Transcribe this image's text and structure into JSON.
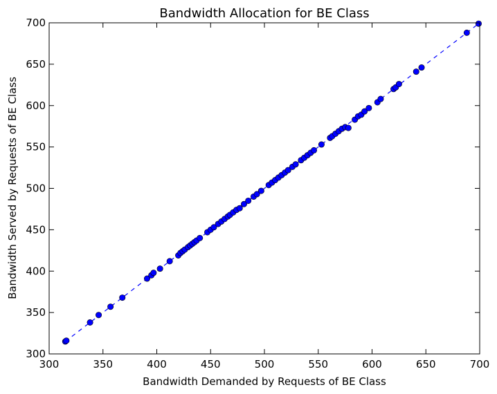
{
  "chart_data": {
    "type": "scatter",
    "title": "Bandwidth Allocation for BE Class",
    "xlabel": "Bandwidth Demanded by Requests of BE Class",
    "ylabel": "Bandwidth Served by Requests of BE Class",
    "xlim": [
      300,
      700
    ],
    "ylim": [
      300,
      700
    ],
    "xticks": [
      300,
      350,
      400,
      450,
      500,
      550,
      600,
      650,
      700
    ],
    "yticks": [
      300,
      350,
      400,
      450,
      500,
      550,
      600,
      650,
      700
    ],
    "grid": false,
    "legend": "none",
    "colors": {
      "points": "#0000ff",
      "line": "#0000ff",
      "point_edge": "#000000"
    },
    "reference_line": {
      "style": "dashed",
      "from": [
        315,
        315
      ],
      "to": [
        700,
        700
      ]
    },
    "series": [
      {
        "x": [
          315,
          316,
          338,
          346,
          357,
          368,
          391,
          395,
          397,
          403,
          412,
          420,
          422,
          424,
          426,
          429,
          431,
          433,
          435,
          437,
          440,
          447,
          450,
          453,
          457,
          460,
          463,
          466,
          468,
          471,
          474,
          477,
          481,
          485,
          490,
          493,
          497,
          504,
          507,
          510,
          513,
          516,
          519,
          522,
          526,
          529,
          534,
          537,
          540,
          543,
          546,
          553,
          561,
          563,
          566,
          569,
          572,
          575,
          578,
          584,
          587,
          590,
          593,
          597,
          605,
          608,
          620,
          622,
          625,
          641,
          646,
          688,
          699
        ],
        "y": [
          315,
          316,
          338,
          347,
          357,
          368,
          391,
          395,
          398,
          403,
          412,
          419,
          422,
          424,
          426,
          429,
          431,
          433,
          435,
          437,
          440,
          447,
          450,
          453,
          457,
          460,
          463,
          466,
          468,
          471,
          474,
          476,
          481,
          485,
          490,
          493,
          497,
          504,
          507,
          510,
          513,
          516,
          519,
          522,
          526,
          529,
          534,
          537,
          540,
          543,
          546,
          553,
          561,
          563,
          566,
          569,
          572,
          574,
          573,
          583,
          587,
          589,
          593,
          597,
          604,
          608,
          620,
          622,
          626,
          641,
          646,
          688,
          699
        ]
      }
    ]
  }
}
